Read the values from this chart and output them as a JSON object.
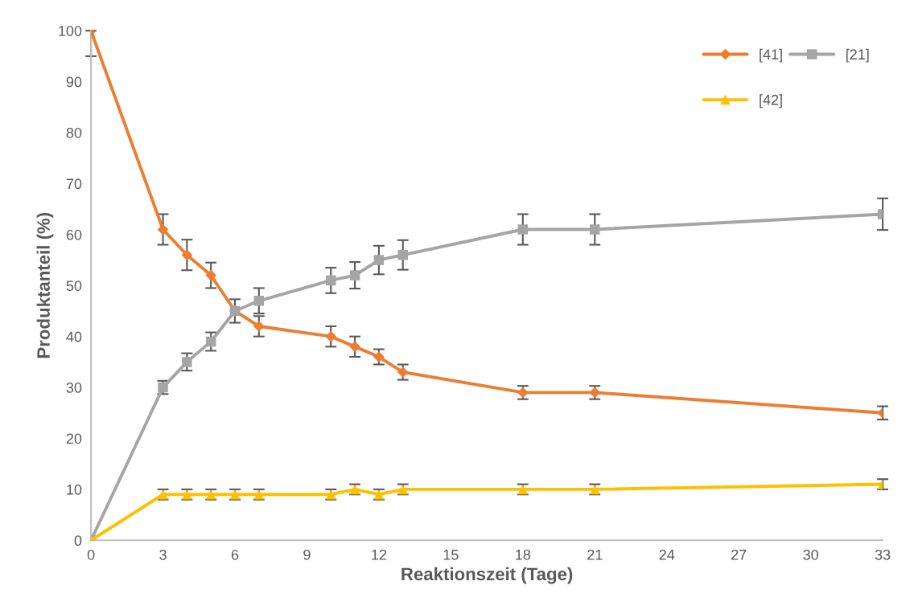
{
  "chart_data": {
    "type": "line",
    "xlabel": "Reaktionszeit (Tage)",
    "ylabel": "Produktanteil (%)",
    "x": [
      0,
      3,
      4,
      5,
      6,
      7,
      10,
      11,
      12,
      13,
      18,
      21,
      33
    ],
    "series": [
      {
        "name": "[41]",
        "color": "#ed7d31",
        "marker": "diamond",
        "values": [
          100,
          61,
          56,
          52,
          45,
          42,
          40,
          38,
          36,
          33,
          29,
          29,
          25
        ],
        "errors": [
          [
            95,
            100
          ],
          3,
          3,
          2.5,
          null,
          2,
          2,
          2,
          1.5,
          1.5,
          1.3,
          1.3,
          1.3
        ]
      },
      {
        "name": "[21]",
        "color": "#a5a5a5",
        "marker": "square",
        "values": [
          0,
          30,
          35,
          39,
          45,
          47,
          51,
          52,
          55,
          56,
          61,
          61,
          64
        ],
        "errors": [
          null,
          1.3,
          1.7,
          1.8,
          2.3,
          2.5,
          2.5,
          2.6,
          2.8,
          2.9,
          3,
          3,
          3.1
        ]
      },
      {
        "name": "[42]",
        "color": "#ffc000",
        "marker": "triangle",
        "values": [
          0,
          9,
          9,
          9,
          9,
          9,
          9,
          10,
          9,
          10,
          10,
          10,
          11
        ],
        "errors": [
          null,
          1,
          1,
          1,
          1,
          1,
          1,
          1,
          1,
          1,
          1,
          1,
          1
        ]
      }
    ],
    "xlim": [
      0,
      33
    ],
    "xticks": [
      0,
      3,
      6,
      9,
      12,
      15,
      18,
      21,
      24,
      27,
      30,
      33
    ],
    "ylim": [
      0,
      100
    ],
    "yticks": [
      0,
      10,
      20,
      30,
      40,
      50,
      60,
      70,
      80,
      90,
      100
    ],
    "grid": false,
    "legend": "top right",
    "line_style": "solid"
  }
}
